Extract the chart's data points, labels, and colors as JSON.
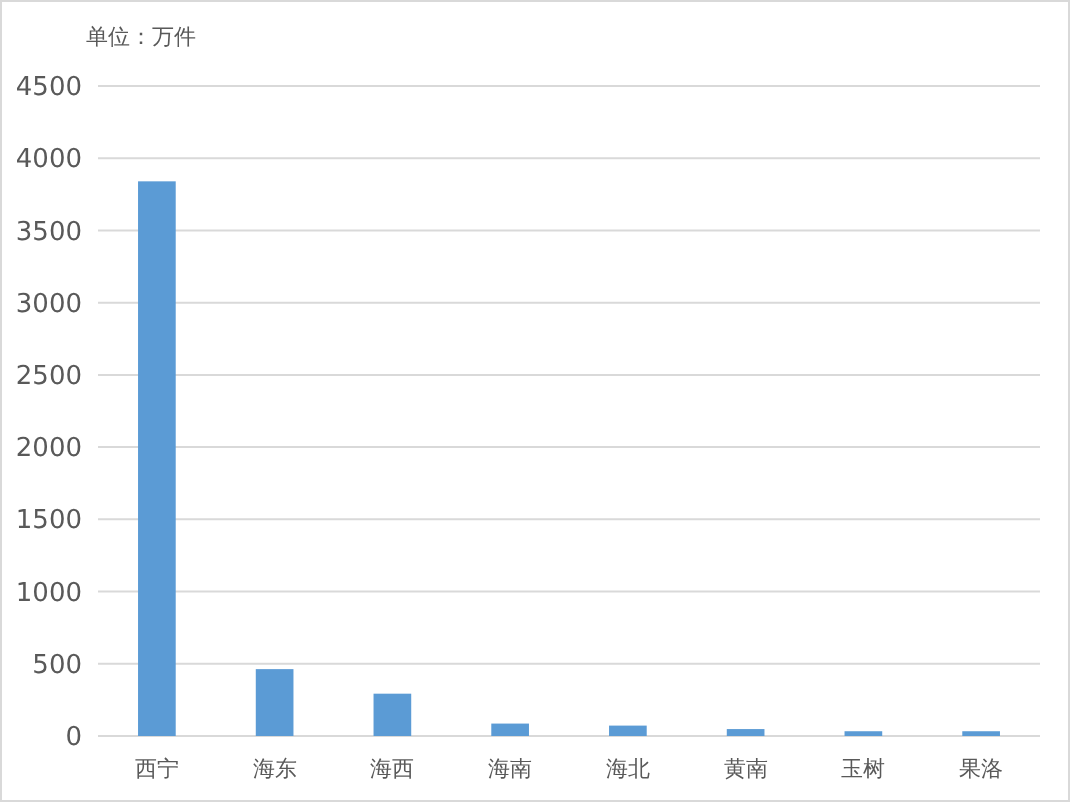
{
  "chart_data": {
    "type": "bar",
    "title": "单位：万件",
    "categories": [
      "西宁",
      "海东",
      "海西",
      "海南",
      "海北",
      "黄南",
      "玉树",
      "果洛"
    ],
    "values": [
      3840,
      463,
      293,
      86,
      72,
      48,
      33,
      33
    ],
    "color": "#5b9bd5",
    "ylim": [
      0,
      4500
    ],
    "yticks": [
      0,
      500,
      1000,
      1500,
      2000,
      2500,
      3000,
      3500,
      4000,
      4500
    ],
    "grid": "y"
  }
}
